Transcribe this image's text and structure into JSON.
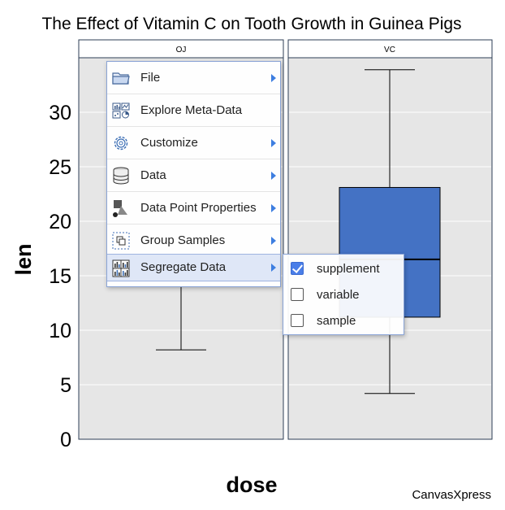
{
  "chart_data": {
    "type": "boxplot",
    "title": "The Effect of Vitamin C on Tooth Growth in Guinea Pigs",
    "xlabel": "dose",
    "ylabel": "len",
    "ylim": [
      0,
      35
    ],
    "y_ticks": [
      "0",
      "5",
      "10",
      "15",
      "20",
      "25",
      "30"
    ],
    "panels": [
      {
        "label": "OJ",
        "min": 8.2,
        "q1": null,
        "median": null,
        "q3": null,
        "max": null
      },
      {
        "label": "VC",
        "min": 4.2,
        "q1": 11.2,
        "median": 16.5,
        "q3": 23.1,
        "max": 33.9
      }
    ],
    "grid": true,
    "box_color": "#4472c4",
    "panel_bg": "#e6e6e6"
  },
  "watermark": "CanvasXpress",
  "context_menu": {
    "items": [
      {
        "label": "File",
        "icon": "folder-icon",
        "has_submenu": true
      },
      {
        "label": "Explore Meta-Data",
        "icon": "meta-data-icon",
        "has_submenu": false
      },
      {
        "label": "Customize",
        "icon": "gear-icon",
        "has_submenu": true
      },
      {
        "label": "Data",
        "icon": "database-icon",
        "has_submenu": true
      },
      {
        "label": "Data Point Properties",
        "icon": "shapes-icon",
        "has_submenu": true
      },
      {
        "label": "Group Samples",
        "icon": "group-icon",
        "has_submenu": true
      },
      {
        "label": "Segregate Data",
        "icon": "segregate-icon",
        "has_submenu": true,
        "active": true
      }
    ]
  },
  "submenu": {
    "items": [
      {
        "label": "supplement",
        "checked": true
      },
      {
        "label": "variable",
        "checked": false
      },
      {
        "label": "sample",
        "checked": false
      }
    ]
  },
  "colors": {
    "accent": "#3d7ee0",
    "menu_border": "#8aa4d6",
    "active_item": "#dfe7f7"
  }
}
